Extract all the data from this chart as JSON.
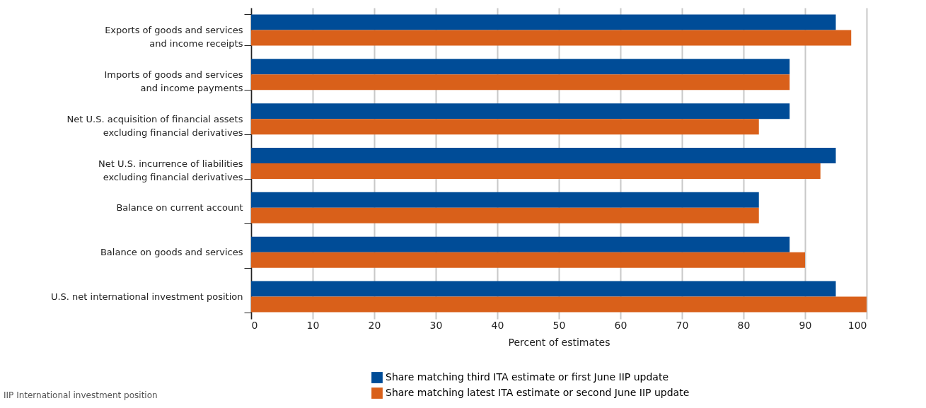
{
  "chart_data": {
    "type": "bar",
    "orientation": "horizontal",
    "categories": [
      "Exports of goods and services\nand income receipts",
      "Imports of goods and services\nand income payments",
      "Net U.S. acquisition of financial assets\nexcluding financial derivatives",
      "Net U.S. incurrence of liabilities\nexcluding financial derivatives",
      "Balance on current account",
      "Balance on goods and services",
      "U.S. net international investment position"
    ],
    "series": [
      {
        "name": "Share matching third ITA estimate or first June IIP update",
        "color": "#004c97",
        "values": [
          95,
          87.5,
          87.5,
          95,
          82.5,
          87.5,
          95
        ]
      },
      {
        "name": "Share matching latest ITA estimate or second June IIP update",
        "color": "#d9601a",
        "values": [
          97.5,
          87.5,
          82.5,
          92.5,
          82.5,
          90,
          100
        ]
      }
    ],
    "xlabel": "Percent of estimates",
    "xlim": [
      0,
      100
    ],
    "xticks": [
      0,
      10,
      20,
      30,
      40,
      50,
      60,
      70,
      80,
      90,
      100
    ],
    "grid": "x",
    "legend": "bottom",
    "annotations": [
      "IIP  International investment position"
    ]
  }
}
